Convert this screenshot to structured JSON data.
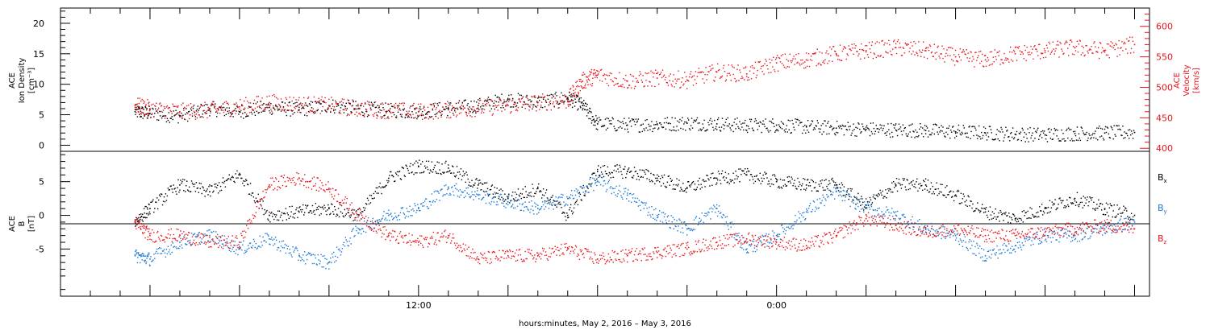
{
  "chart_data": [
    {
      "type": "scatter",
      "panel": "top",
      "ylabel_left": [
        "ACE",
        "Ion Density",
        "[cm⁻³]"
      ],
      "ylabel_right": [
        "ACE",
        "Velocity",
        "[km/s]"
      ],
      "ylim_left": [
        -1,
        22.5
      ],
      "ylim_right": [
        395,
        630
      ],
      "yticks_left": [
        0,
        5,
        10,
        15,
        20
      ],
      "yticks_right": [
        400,
        450,
        500,
        550,
        600
      ],
      "series": [
        {
          "axis": "left",
          "color": "#000000",
          "x": [
            2.5,
            3,
            4,
            5,
            6,
            7,
            8,
            9,
            10,
            11,
            12,
            13,
            14,
            15,
            16,
            17,
            17.5,
            18,
            19,
            20,
            21,
            22,
            23,
            24,
            25,
            26,
            27,
            28,
            29,
            30,
            31,
            32,
            33,
            34,
            35,
            36
          ],
          "y": [
            5.5,
            5.2,
            4.8,
            6.0,
            5.5,
            6.2,
            5.8,
            6.5,
            6.0,
            5.7,
            5.5,
            6.0,
            6.5,
            7.5,
            7.0,
            7.8,
            6.5,
            3.5,
            3.3,
            3.4,
            3.6,
            3.5,
            3.2,
            3.3,
            3.0,
            2.8,
            2.6,
            2.5,
            2.4,
            2.2,
            2.0,
            1.8,
            1.7,
            1.9,
            2.0,
            2.1
          ]
        },
        {
          "axis": "right",
          "color": "#e8141b",
          "x": [
            2.5,
            3,
            4,
            5,
            6,
            7,
            8,
            9,
            10,
            11,
            12,
            13,
            14,
            15,
            16,
            17,
            17.5,
            18,
            19,
            20,
            21,
            22,
            23,
            24,
            25,
            26,
            27,
            28,
            29,
            30,
            31,
            32,
            33,
            34,
            35,
            36
          ],
          "y": [
            470,
            465,
            460,
            462,
            468,
            475,
            472,
            470,
            465,
            462,
            460,
            463,
            466,
            470,
            475,
            478,
            510,
            520,
            510,
            515,
            512,
            525,
            522,
            540,
            545,
            555,
            560,
            565,
            560,
            550,
            545,
            555,
            560,
            565,
            560,
            570
          ]
        }
      ]
    },
    {
      "type": "scatter",
      "panel": "bottom",
      "ylabel_left": [
        "ACE",
        "B",
        "[nT]"
      ],
      "ylim": [
        -12,
        9.5
      ],
      "yticks": [
        -5,
        0,
        5
      ],
      "legend_right": [
        "Bx",
        "By",
        "Bz"
      ],
      "series": [
        {
          "name": "Bx",
          "color": "#000000",
          "x": [
            2.5,
            3,
            4,
            5,
            6,
            7,
            8,
            9,
            10,
            11,
            12,
            13,
            14,
            15,
            16,
            17,
            18,
            19,
            20,
            21,
            22,
            23,
            24,
            25,
            26,
            27,
            28,
            29,
            30,
            31,
            32,
            33,
            34,
            35,
            36
          ],
          "y": [
            -1,
            1,
            4.5,
            3.5,
            6,
            0,
            0.5,
            1,
            0,
            5.5,
            7.3,
            7,
            4.5,
            2.5,
            4,
            0,
            6.5,
            6.5,
            5.5,
            4,
            5.5,
            6,
            5,
            4.5,
            4.5,
            1.5,
            4.5,
            4.5,
            3,
            0.5,
            -0.5,
            1,
            2.5,
            1,
            0
          ]
        },
        {
          "name": "By",
          "color": "#1a77d4",
          "x": [
            2.5,
            3,
            4,
            5,
            6,
            7,
            8,
            9,
            10,
            11,
            12,
            13,
            14,
            15,
            16,
            17,
            18,
            19,
            20,
            21,
            22,
            23,
            24,
            25,
            26,
            27,
            28,
            29,
            30,
            31,
            32,
            33,
            34,
            35,
            36
          ],
          "y": [
            -6,
            -6.5,
            -4,
            -3,
            -5,
            -3.5,
            -6,
            -7,
            -2,
            0,
            1,
            4,
            3,
            2,
            1,
            2.5,
            5,
            3,
            0,
            -2,
            1,
            -5,
            -3,
            0.5,
            3.5,
            1,
            0,
            -2,
            -3,
            -6,
            -4.5,
            -3,
            -3,
            -2,
            -1
          ]
        },
        {
          "name": "Bz",
          "color": "#e8141b",
          "x": [
            2.5,
            3,
            4,
            5,
            6,
            7,
            8,
            9,
            10,
            11,
            12,
            13,
            14,
            15,
            16,
            17,
            18,
            19,
            20,
            21,
            22,
            23,
            24,
            25,
            26,
            27,
            28,
            29,
            30,
            31,
            32,
            33,
            34,
            35,
            36
          ],
          "y": [
            -1,
            -3,
            -3,
            -4,
            -4,
            4.5,
            5.5,
            4,
            0,
            -3,
            -4,
            -3,
            -6.5,
            -6,
            -6,
            -5,
            -6.5,
            -6,
            -5.5,
            -5,
            -4,
            -3.5,
            -4,
            -4.5,
            -3,
            -0.5,
            -1.5,
            -2.5,
            -2,
            -3,
            -3,
            -2.5,
            -2,
            -1.5,
            -2
          ]
        }
      ]
    }
  ],
  "x_axis": {
    "tick_labels": [
      {
        "text": "12:00",
        "x": 12
      },
      {
        "text": "0:00",
        "x": 24
      }
    ],
    "xlim": [
      0,
      36.5
    ],
    "caption": "hours:minutes, May  2, 2016 – May  3, 2016"
  }
}
